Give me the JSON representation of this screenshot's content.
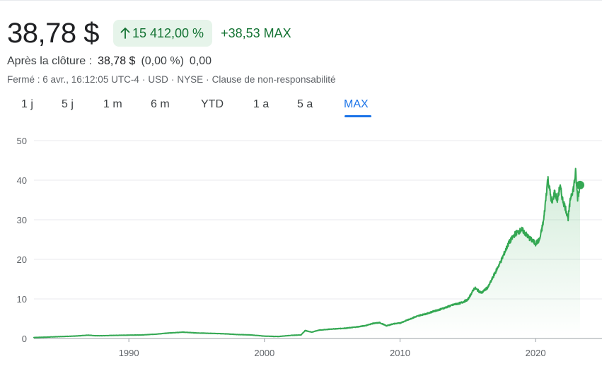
{
  "header": {
    "price": "38,78 $",
    "change_percent": "15 412,00 %",
    "change_abs": "+38,53 MAX"
  },
  "after_hours": {
    "label": "Après la clôture :",
    "price": "38,78 $",
    "change_percent": "(0,00 %)",
    "change_abs": "0,00"
  },
  "meta": {
    "status": "Fermé : 6 avr., 16:12:05 UTC-4",
    "currency": "USD",
    "exchange": "NYSE",
    "disclaimer": "Clause de non-responsabilité"
  },
  "tabs": [
    {
      "label": "1 j"
    },
    {
      "label": "5 j"
    },
    {
      "label": "1 m"
    },
    {
      "label": "6 m"
    },
    {
      "label": "YTD"
    },
    {
      "label": "1 a"
    },
    {
      "label": "5 a"
    },
    {
      "label": "MAX"
    }
  ],
  "active_tab": "MAX",
  "colors": {
    "line": "#34a853",
    "positive_text": "#137333",
    "positive_bg": "#e6f4ea",
    "accent": "#1a73e8",
    "grid": "#e8eaed"
  },
  "icons": {
    "change_arrow": "arrow-up-icon"
  },
  "chart_data": {
    "type": "area",
    "title": "",
    "xlabel": "",
    "ylabel": "",
    "xlim": [
      1983.0,
      2023.28
    ],
    "ylim": [
      0,
      50
    ],
    "yticks": [
      0,
      10,
      20,
      30,
      40,
      50
    ],
    "xticks": [
      1990,
      2000,
      2010,
      2020
    ],
    "grid": true,
    "legend": "none",
    "x": [
      1983.0,
      1984.0,
      1985.0,
      1986.0,
      1987.0,
      1987.5,
      1988.0,
      1989.0,
      1990.0,
      1991.0,
      1992.0,
      1993.0,
      1994.0,
      1994.5,
      1995.0,
      1996.0,
      1997.0,
      1998.0,
      1999.0,
      2000.0,
      2001.0,
      2002.0,
      2002.7,
      2003.0,
      2003.5,
      2004.0,
      2005.0,
      2006.0,
      2007.0,
      2007.5,
      2008.0,
      2008.5,
      2009.0,
      2009.5,
      2010.0,
      2010.5,
      2011.0,
      2011.5,
      2012.0,
      2012.5,
      2013.0,
      2013.5,
      2014.0,
      2014.5,
      2015.0,
      2015.5,
      2016.0,
      2016.5,
      2017.0,
      2017.5,
      2018.0,
      2018.5,
      2019.0,
      2019.5,
      2020.0,
      2020.3,
      2020.6,
      2020.9,
      2021.0,
      2021.2,
      2021.4,
      2021.6,
      2021.8,
      2022.0,
      2022.2,
      2022.4,
      2022.6,
      2022.8,
      2022.95,
      2023.1,
      2023.28
    ],
    "y": [
      0.25,
      0.35,
      0.5,
      0.6,
      0.85,
      0.7,
      0.7,
      0.8,
      0.85,
      0.9,
      1.1,
      1.4,
      1.6,
      1.5,
      1.4,
      1.3,
      1.2,
      1.0,
      0.9,
      0.6,
      0.5,
      0.8,
      0.9,
      2.0,
      1.6,
      2.1,
      2.4,
      2.6,
      3.0,
      3.3,
      3.8,
      4.0,
      3.2,
      3.7,
      3.9,
      4.6,
      5.3,
      5.9,
      6.3,
      6.9,
      7.4,
      8.0,
      8.6,
      9.0,
      9.8,
      12.8,
      11.5,
      13.0,
      16.5,
      20.0,
      24.0,
      26.5,
      27.5,
      25.5,
      24.0,
      25.0,
      30.0,
      40.5,
      38.5,
      34.0,
      37.0,
      35.0,
      38.5,
      35.0,
      33.0,
      30.5,
      36.0,
      38.0,
      42.0,
      35.5,
      38.78
    ]
  }
}
